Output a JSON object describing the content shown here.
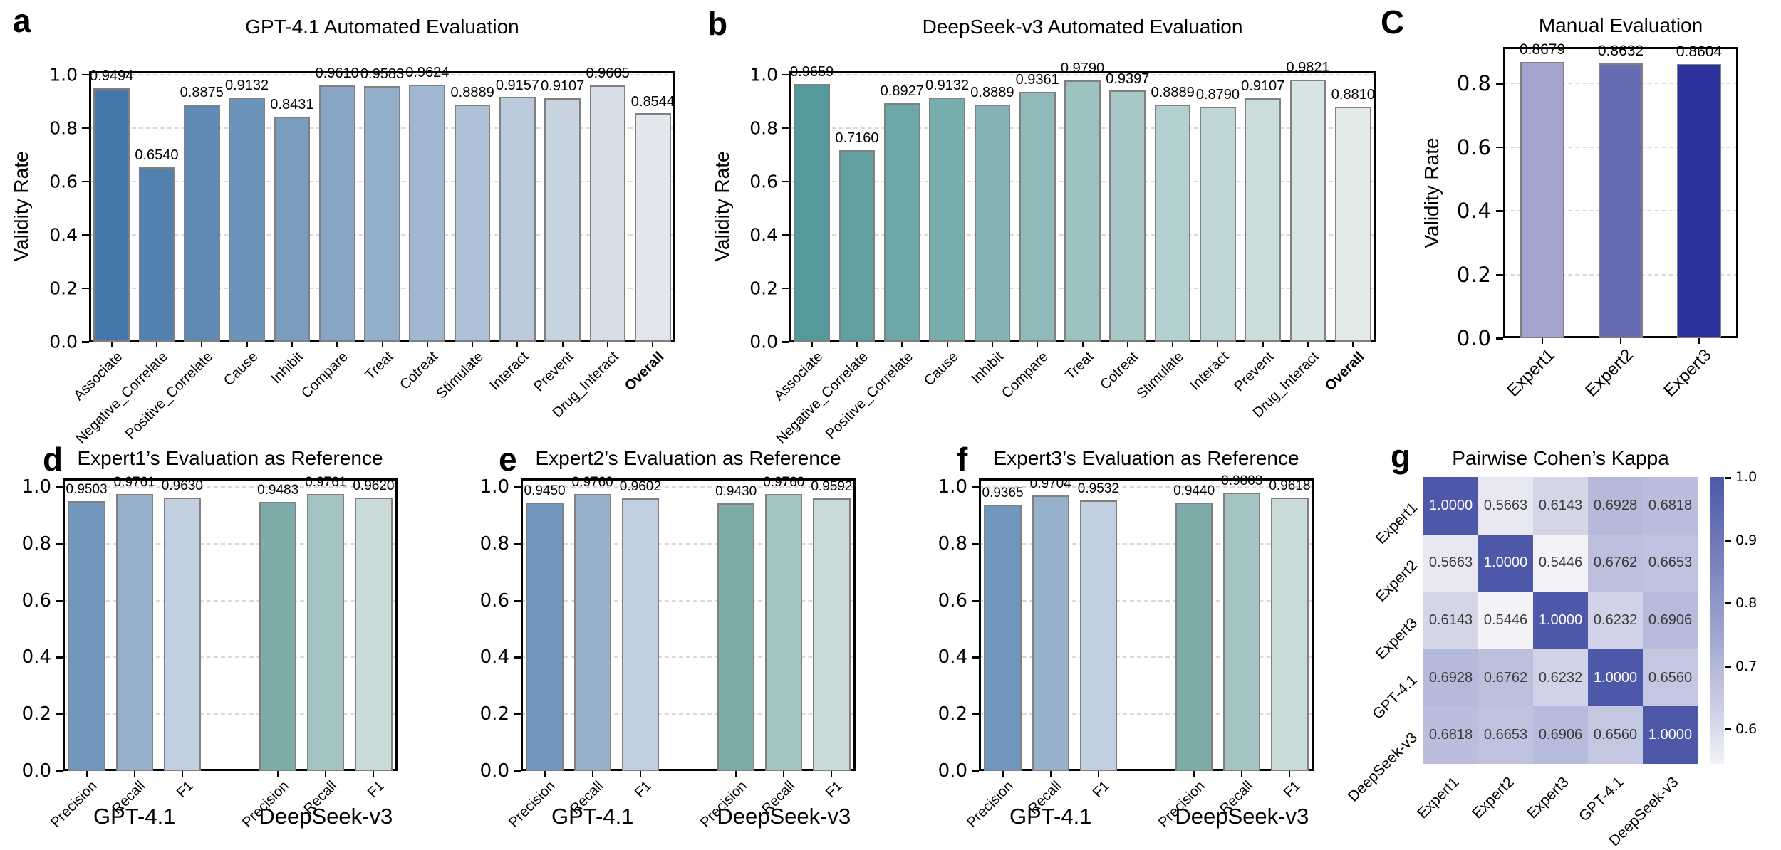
{
  "figure": {
    "background": "#ffffff"
  },
  "panels": [
    {
      "letter": "a"
    },
    {
      "letter": "b"
    },
    {
      "letter": "C"
    },
    {
      "letter": "d"
    },
    {
      "letter": "e"
    },
    {
      "letter": "f"
    },
    {
      "letter": "g"
    }
  ],
  "colors": {
    "bar_edge": "#808080",
    "grid": "#d9d9d9",
    "spine": "#000000",
    "heat_dark": "#4d58a8",
    "heat_light": "#f2f2f7",
    "heat_text_dark": "#3a3a3a",
    "heat_text_light": "#ffffff"
  },
  "chart_data": [
    {
      "id": "a",
      "type": "bar",
      "title": "GPT-4.1 Automated Evaluation",
      "ylabel": "Validity Rate",
      "ylim": [
        0,
        1.0
      ],
      "yticks": [
        "0.0",
        "0.2",
        "0.4",
        "0.6",
        "0.8",
        "1.0"
      ],
      "grid": true,
      "categories": [
        "Associate",
        "Negative_Correlate",
        "Positive_Correlate",
        "Cause",
        "Inhibit",
        "Compare",
        "Treat",
        "Cotreat",
        "Stimulate",
        "Interact",
        "Prevent",
        "Drug_Interact",
        "Overall"
      ],
      "bold_categories": [
        "Overall"
      ],
      "values": [
        "0.9494",
        "0.6540",
        "0.8875",
        "0.9132",
        "0.8431",
        "0.9610",
        "0.9583",
        "0.9624",
        "0.8889",
        "0.9157",
        "0.9107",
        "0.9605",
        "0.8544"
      ],
      "colors": [
        "#4577a9",
        "#5280af",
        "#5f8ab4",
        "#6c93ba",
        "#7a9cbf",
        "#87a5c5",
        "#94afcb",
        "#a1b8d0",
        "#aec1d6",
        "#bbcadb",
        "#c9d4e1",
        "#d6dde6",
        "#e3e6ec"
      ]
    },
    {
      "id": "b",
      "type": "bar",
      "title": "DeepSeek-v3 Automated Evaluation",
      "ylabel": "Validity Rate",
      "ylim": [
        0,
        1.0
      ],
      "yticks": [
        "0.0",
        "0.2",
        "0.4",
        "0.6",
        "0.8",
        "1.0"
      ],
      "grid": true,
      "categories": [
        "Associate",
        "Negative_Correlate",
        "Positive_Correlate",
        "Cause",
        "Inhibit",
        "Compare",
        "Treat",
        "Cotreat",
        "Stimulate",
        "Interact",
        "Prevent",
        "Drug_Interact",
        "Overall"
      ],
      "bold_categories": [
        "Overall"
      ],
      "values": [
        "0.9659",
        "0.7160",
        "0.8927",
        "0.9132",
        "0.8889",
        "0.9361",
        "0.9790",
        "0.9397",
        "0.8889",
        "0.8790",
        "0.9107",
        "0.9821",
        "0.8810"
      ],
      "colors": [
        "#55999a",
        "#61a0a1",
        "#6da7a7",
        "#78adae",
        "#84b4b5",
        "#90bbbb",
        "#9cc2c2",
        "#a7c8c9",
        "#b3cfcf",
        "#bfd6d6",
        "#cbdcdd",
        "#d6e3e3",
        "#e2eaea"
      ]
    },
    {
      "id": "c",
      "type": "bar",
      "title": "Manual Evaluation",
      "ylabel": "Validity Rate",
      "ylim": [
        0,
        0.915
      ],
      "yticks": [
        "0.0",
        "0.2",
        "0.4",
        "0.6",
        "0.8"
      ],
      "grid": true,
      "categories": [
        "Expert1",
        "Expert2",
        "Expert3"
      ],
      "values": [
        "0.8679",
        "0.8632",
        "0.8604"
      ],
      "colors": [
        "#a3a5ce",
        "#676db4",
        "#2c339f"
      ]
    },
    {
      "id": "d",
      "type": "bar",
      "title": "Expert1’s Evaluation as Reference",
      "ylim": [
        0,
        1.0
      ],
      "yticks": [
        "0.0",
        "0.2",
        "0.4",
        "0.6",
        "0.8",
        "1.0"
      ],
      "grid": true,
      "groups": [
        {
          "label": "GPT-4.1",
          "categories": [
            "Precision",
            "Recall",
            "F1"
          ],
          "values": [
            "0.9503",
            "0.9761",
            "0.9630"
          ],
          "colors": [
            "#7096bd",
            "#97b1cd",
            "#c2cfe0"
          ]
        },
        {
          "label": "DeepSeek-v3",
          "categories": [
            "Precision",
            "Recall",
            "F1"
          ],
          "values": [
            "0.9483",
            "0.9761",
            "0.9620"
          ],
          "colors": [
            "#7dacab",
            "#a3c4c3",
            "#c9dbd8"
          ]
        }
      ]
    },
    {
      "id": "e",
      "type": "bar",
      "title": "Expert2’s Evaluation as Reference",
      "ylim": [
        0,
        1.0
      ],
      "yticks": [
        "0.0",
        "0.2",
        "0.4",
        "0.6",
        "0.8",
        "1.0"
      ],
      "grid": true,
      "groups": [
        {
          "label": "GPT-4.1",
          "categories": [
            "Precision",
            "Recall",
            "F1"
          ],
          "values": [
            "0.9450",
            "0.9760",
            "0.9602"
          ],
          "colors": [
            "#7096bd",
            "#97b1cd",
            "#c2cfe0"
          ]
        },
        {
          "label": "DeepSeek-v3",
          "categories": [
            "Precision",
            "Recall",
            "F1"
          ],
          "values": [
            "0.9430",
            "0.9760",
            "0.9592"
          ],
          "colors": [
            "#7dacab",
            "#a3c4c3",
            "#c9dbd8"
          ]
        }
      ]
    },
    {
      "id": "f",
      "type": "bar",
      "title": "Expert3’s Evaluation as Reference",
      "ylim": [
        0,
        1.0
      ],
      "yticks": [
        "0.0",
        "0.2",
        "0.4",
        "0.6",
        "0.8",
        "1.0"
      ],
      "grid": true,
      "groups": [
        {
          "label": "GPT-4.1",
          "categories": [
            "Precision",
            "Recall",
            "F1"
          ],
          "values": [
            "0.9365",
            "0.9704",
            "0.9532"
          ],
          "colors": [
            "#7096bd",
            "#97b1cd",
            "#c2cfe0"
          ]
        },
        {
          "label": "DeepSeek-v3",
          "categories": [
            "Precision",
            "Recall",
            "F1"
          ],
          "values": [
            "0.9440",
            "0.9803",
            "0.9618"
          ],
          "colors": [
            "#7dacab",
            "#a3c4c3",
            "#c9dbd8"
          ]
        }
      ]
    },
    {
      "id": "g",
      "type": "heatmap",
      "title": "Pairwise Cohen’s Kappa",
      "labels": [
        "Expert1",
        "Expert2",
        "Expert3",
        "GPT-4.1",
        "DeepSeek-v3"
      ],
      "matrix": [
        [
          "1.0000",
          "0.5663",
          "0.6143",
          "0.6928",
          "0.6818"
        ],
        [
          "0.5663",
          "1.0000",
          "0.5446",
          "0.6762",
          "0.6653"
        ],
        [
          "0.6143",
          "0.5446",
          "1.0000",
          "0.6232",
          "0.6906"
        ],
        [
          "0.6928",
          "0.6762",
          "0.6232",
          "1.0000",
          "0.6560"
        ],
        [
          "0.6818",
          "0.6653",
          "0.6906",
          "0.6560",
          "1.0000"
        ]
      ],
      "colorbar_ticks": [
        "1.0",
        "0.9",
        "0.8",
        "0.7",
        "0.6"
      ],
      "vmin": 0.545,
      "vmax": 1.0,
      "legend_position": "right"
    }
  ]
}
